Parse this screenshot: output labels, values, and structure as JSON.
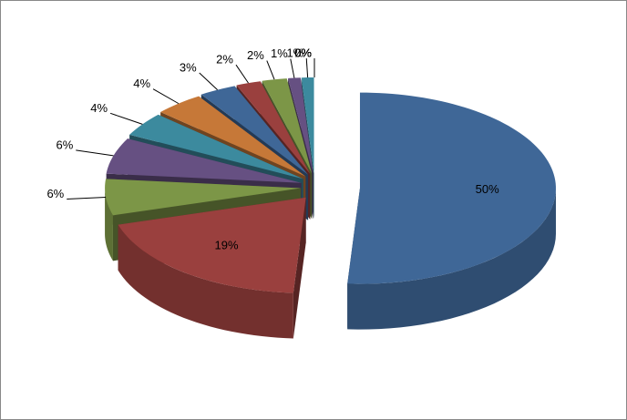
{
  "chart_data": {
    "type": "pie",
    "three_d": true,
    "values": [
      50,
      19,
      6,
      6,
      4,
      4,
      3,
      2,
      2,
      1,
      1,
      0,
      0,
      0,
      0,
      0
    ],
    "value_labels": [
      "50%",
      "19%",
      "6%",
      "6%",
      "4%",
      "4%",
      "3%",
      "2%",
      "2%",
      "1%",
      "1%",
      "0%",
      "0%",
      "0%",
      "0%",
      "0%"
    ],
    "colors": [
      "#4f81bd",
      "#c0504d",
      "#9bbb59",
      "#8064a2",
      "#4bacc6",
      "#f79646",
      "#4f81bd",
      "#c0504d",
      "#9bbb59",
      "#8064a2",
      "#4bacc6",
      "#f79646",
      "#4f81bd",
      "#c0504d",
      "#9bbb59",
      "#8064a2"
    ]
  }
}
